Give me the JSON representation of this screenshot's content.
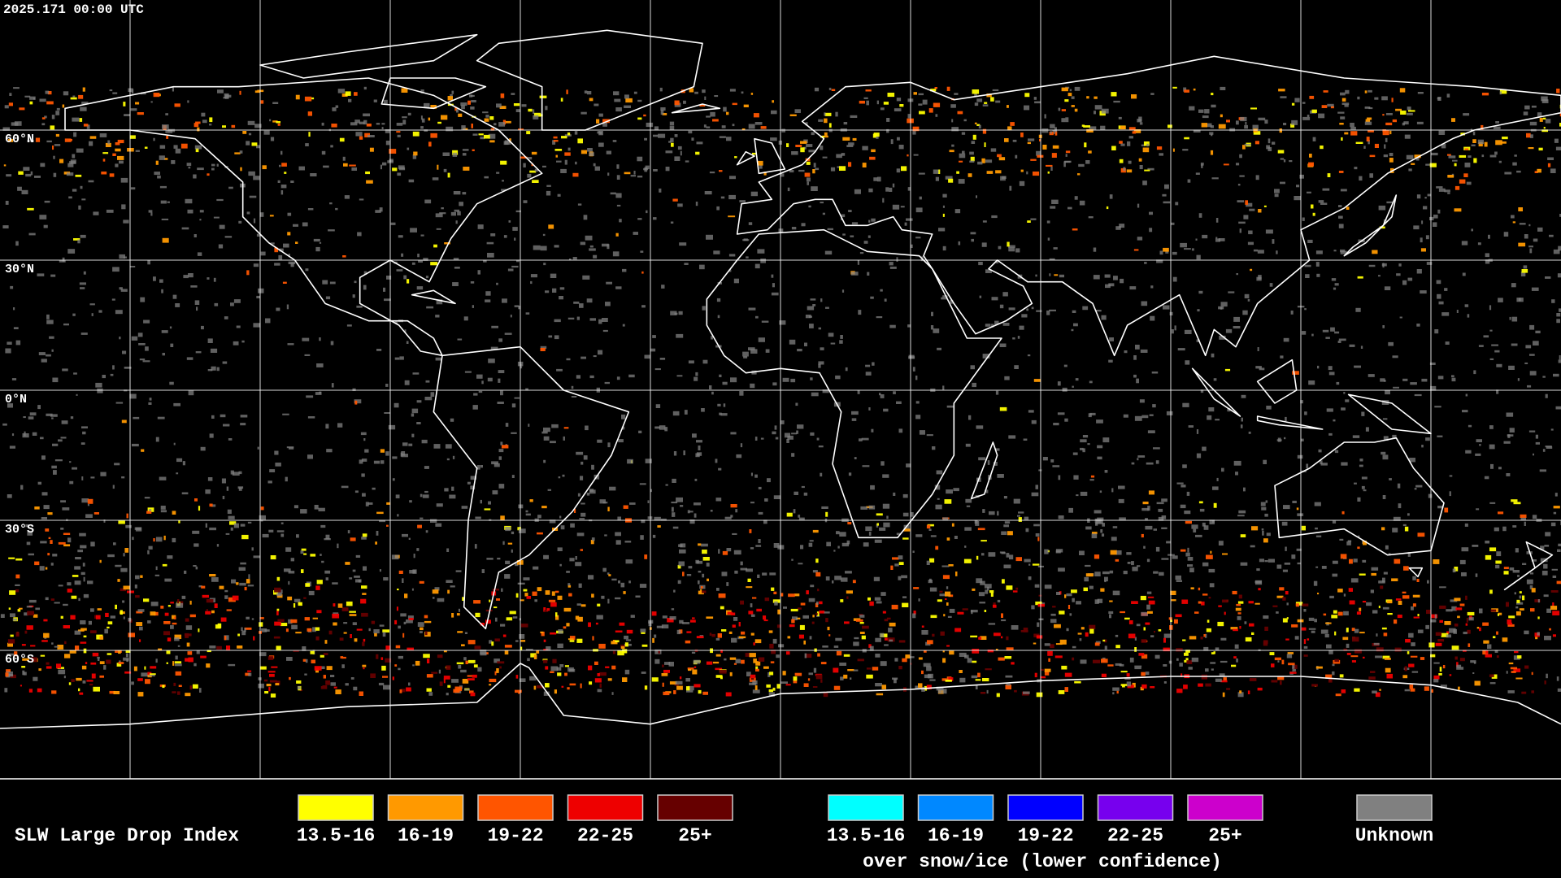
{
  "timestamp": "2025.171 00:00 UTC",
  "latitude_labels": [
    "60°N",
    "30°N",
    "0°N",
    "30°S",
    "60°S"
  ],
  "legend": {
    "title": "SLW Large Drop Index",
    "items": [
      {
        "label": "13.5-16",
        "color": "#ffff00"
      },
      {
        "label": "16-19",
        "color": "#ff9900"
      },
      {
        "label": "19-22",
        "color": "#ff5500"
      },
      {
        "label": "22-25",
        "color": "#ee0000"
      },
      {
        "label": "25+",
        "color": "#660000"
      }
    ],
    "snow_ice_items": [
      {
        "label": "13.5-16",
        "color": "#00ffff"
      },
      {
        "label": "16-19",
        "color": "#0088ff"
      },
      {
        "label": "19-22",
        "color": "#0000ff"
      },
      {
        "label": "22-25",
        "color": "#7700ee"
      },
      {
        "label": "25+",
        "color": "#cc00cc"
      }
    ],
    "snow_ice_caption": "over snow/ice (lower confidence)",
    "unknown": {
      "label": "Unknown",
      "color": "#808080"
    }
  }
}
